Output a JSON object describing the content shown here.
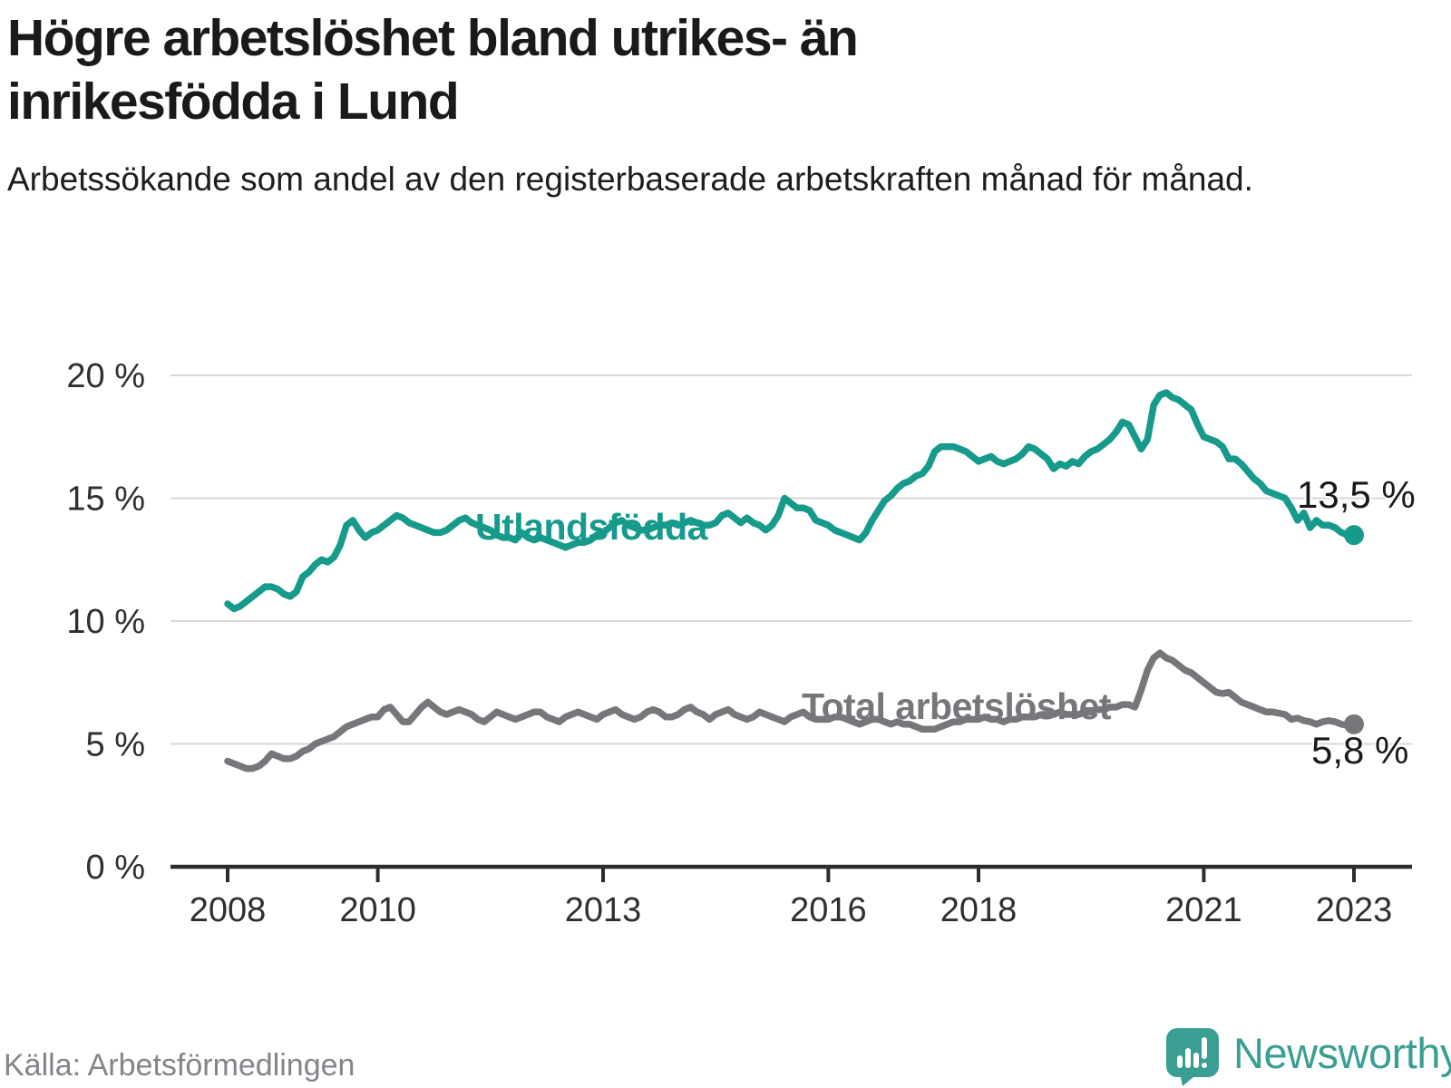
{
  "header": {
    "title": "Högre arbetslöshet bland utrikes- än inrikesfödda i Lund",
    "subtitle": "Arbetssökande som andel av den registerbaserade arbetskraften månad för månad."
  },
  "footer": {
    "source": "Källa: Arbetsförmedlingen",
    "brand": "Newsworthy"
  },
  "colors": {
    "series_foreign_born": "#169a8c",
    "series_total": "#76777b",
    "axis": "#2d2d2d",
    "grid": "#d8d8d8",
    "tick_text": "#2f2f2f",
    "title_text": "#1a1a1a",
    "muted_text": "#84848b",
    "brand_teal": "#3a9e93"
  },
  "chart_data": {
    "type": "line",
    "title": "Högre arbetslöshet bland utrikes- än inrikesfödda i Lund",
    "subtitle": "Arbetssökande som andel av den registerbaserade arbetskraften månad för månad.",
    "xlabel": "",
    "ylabel": "",
    "grid": "horizontal",
    "legend_position": "inline-labels",
    "x_start_year": 2008,
    "x_months_per_point": 1,
    "xlim_years": [
      2007.25,
      2023.75
    ],
    "ylim": [
      0,
      20
    ],
    "x_ticks": [
      {
        "year": 2008,
        "label": "2008"
      },
      {
        "year": 2010,
        "label": "2010"
      },
      {
        "year": 2013,
        "label": "2013"
      },
      {
        "year": 2016,
        "label": "2016"
      },
      {
        "year": 2018,
        "label": "2018"
      },
      {
        "year": 2021,
        "label": "2021"
      },
      {
        "year": 2023,
        "label": "2023"
      }
    ],
    "y_ticks": [
      {
        "value": 0,
        "label": "0 %"
      },
      {
        "value": 5,
        "label": "5 %"
      },
      {
        "value": 10,
        "label": "10 %"
      },
      {
        "value": 15,
        "label": "15 %"
      },
      {
        "value": 20,
        "label": "20 %"
      }
    ],
    "series": [
      {
        "name": "Utlandsfödda",
        "color": "#169a8c",
        "end_label": "13,5 %",
        "end_value": 13.5,
        "values": [
          10.7,
          10.5,
          10.6,
          10.8,
          11.0,
          11.2,
          11.4,
          11.4,
          11.3,
          11.1,
          11.0,
          11.2,
          11.8,
          12.0,
          12.3,
          12.5,
          12.4,
          12.6,
          13.1,
          13.9,
          14.1,
          13.7,
          13.4,
          13.6,
          13.7,
          13.9,
          14.1,
          14.3,
          14.2,
          14.0,
          13.9,
          13.8,
          13.7,
          13.6,
          13.6,
          13.7,
          13.9,
          14.1,
          14.2,
          14.0,
          13.9,
          13.8,
          13.7,
          13.5,
          13.4,
          13.4,
          13.3,
          13.6,
          13.4,
          13.3,
          13.4,
          13.3,
          13.2,
          13.1,
          13.0,
          13.1,
          13.2,
          13.2,
          13.3,
          13.5,
          13.6,
          13.8,
          14.0,
          14.1,
          13.9,
          13.8,
          13.7,
          13.7,
          13.8,
          13.9,
          13.9,
          14.0,
          13.9,
          14.0,
          14.1,
          14.0,
          13.9,
          13.9,
          14.0,
          14.3,
          14.4,
          14.2,
          14.0,
          14.2,
          14.0,
          13.9,
          13.7,
          13.9,
          14.3,
          15.0,
          14.8,
          14.6,
          14.6,
          14.5,
          14.1,
          14.0,
          13.9,
          13.7,
          13.6,
          13.5,
          13.4,
          13.3,
          13.6,
          14.1,
          14.5,
          14.9,
          15.1,
          15.4,
          15.6,
          15.7,
          15.9,
          16.0,
          16.3,
          16.9,
          17.1,
          17.1,
          17.1,
          17.0,
          16.9,
          16.7,
          16.5,
          16.6,
          16.7,
          16.5,
          16.4,
          16.5,
          16.6,
          16.8,
          17.1,
          17.0,
          16.8,
          16.6,
          16.2,
          16.4,
          16.3,
          16.5,
          16.4,
          16.7,
          16.9,
          17.0,
          17.2,
          17.4,
          17.7,
          18.1,
          18.0,
          17.5,
          17.0,
          17.4,
          18.8,
          19.2,
          19.3,
          19.1,
          19.0,
          18.8,
          18.6,
          18.0,
          17.5,
          17.4,
          17.3,
          17.1,
          16.6,
          16.6,
          16.4,
          16.1,
          15.8,
          15.6,
          15.3,
          15.2,
          15.1,
          15.0,
          14.6,
          14.1,
          14.4,
          13.8,
          14.1,
          13.9,
          13.9,
          13.8,
          13.6,
          13.5,
          13.5
        ]
      },
      {
        "name": "Total arbetslöshet",
        "color": "#76777b",
        "end_label": "5,8 %",
        "end_value": 5.8,
        "values": [
          4.3,
          4.2,
          4.1,
          4.0,
          4.0,
          4.1,
          4.3,
          4.6,
          4.5,
          4.4,
          4.4,
          4.5,
          4.7,
          4.8,
          5.0,
          5.1,
          5.2,
          5.3,
          5.5,
          5.7,
          5.8,
          5.9,
          6.0,
          6.1,
          6.1,
          6.4,
          6.5,
          6.2,
          5.9,
          5.9,
          6.2,
          6.5,
          6.7,
          6.5,
          6.3,
          6.2,
          6.3,
          6.4,
          6.3,
          6.2,
          6.0,
          5.9,
          6.1,
          6.3,
          6.2,
          6.1,
          6.0,
          6.1,
          6.2,
          6.3,
          6.3,
          6.1,
          6.0,
          5.9,
          6.1,
          6.2,
          6.3,
          6.2,
          6.1,
          6.0,
          6.2,
          6.3,
          6.4,
          6.2,
          6.1,
          6.0,
          6.1,
          6.3,
          6.4,
          6.3,
          6.1,
          6.1,
          6.2,
          6.4,
          6.5,
          6.3,
          6.2,
          6.0,
          6.2,
          6.3,
          6.4,
          6.2,
          6.1,
          6.0,
          6.1,
          6.3,
          6.2,
          6.1,
          6.0,
          5.9,
          6.1,
          6.2,
          6.3,
          6.1,
          6.0,
          6.0,
          6.0,
          6.1,
          6.1,
          6.0,
          5.9,
          5.8,
          5.9,
          6.0,
          6.0,
          5.9,
          5.8,
          5.9,
          5.8,
          5.8,
          5.7,
          5.6,
          5.6,
          5.6,
          5.7,
          5.8,
          5.9,
          5.9,
          6.0,
          6.0,
          6.0,
          6.1,
          6.0,
          6.0,
          5.9,
          6.0,
          6.0,
          6.1,
          6.1,
          6.1,
          6.2,
          6.2,
          6.2,
          6.3,
          6.2,
          6.2,
          6.2,
          6.3,
          6.3,
          6.4,
          6.4,
          6.5,
          6.5,
          6.6,
          6.6,
          6.5,
          7.2,
          8.0,
          8.5,
          8.7,
          8.5,
          8.4,
          8.2,
          8.0,
          7.9,
          7.7,
          7.5,
          7.3,
          7.1,
          7.05,
          7.1,
          6.9,
          6.7,
          6.6,
          6.5,
          6.4,
          6.3,
          6.3,
          6.25,
          6.2,
          6.0,
          6.05,
          5.95,
          5.9,
          5.8,
          5.9,
          5.95,
          5.9,
          5.8,
          5.75,
          5.8
        ]
      }
    ]
  }
}
